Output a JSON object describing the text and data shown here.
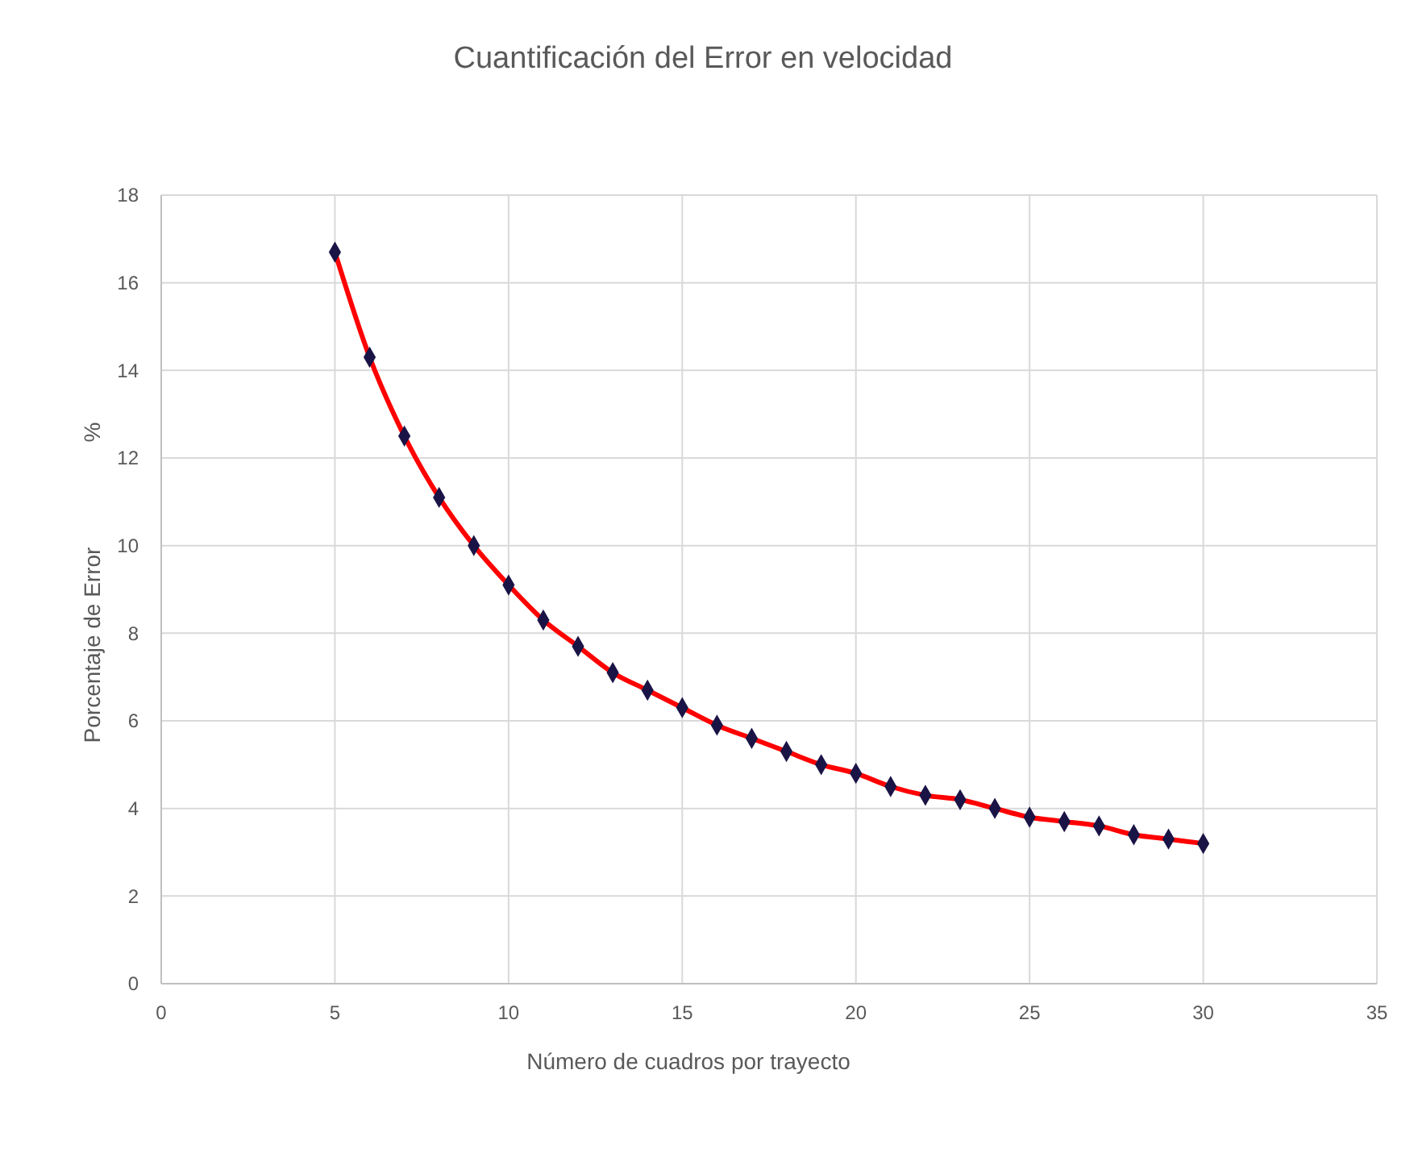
{
  "chart_data": {
    "type": "line",
    "title": "Cuantificación del Error en velocidad",
    "xlabel": "Número de cuadros por trayecto",
    "ylabel": "Porcentaje de Error",
    "annotations": [
      "%"
    ],
    "x": [
      5,
      6,
      7,
      8,
      9,
      10,
      11,
      12,
      13,
      14,
      15,
      16,
      17,
      18,
      19,
      20,
      21,
      22,
      23,
      24,
      25,
      26,
      27,
      28,
      29,
      30
    ],
    "series": [
      {
        "color": "#ff0000",
        "values": [
          16.7,
          14.3,
          12.5,
          11.1,
          10,
          9.1,
          8.3,
          7.7,
          7.1,
          6.7,
          6.3,
          5.9,
          5.6,
          5.3,
          5.0,
          4.8,
          4.5,
          4.3,
          4.2,
          4.0,
          3.8,
          3.7,
          3.6,
          3.4,
          3.3,
          3.2
        ]
      }
    ],
    "marker": "diamond",
    "line_style": "solid",
    "grid": true,
    "xlim": [
      0,
      35
    ],
    "xticks": [
      0,
      5,
      10,
      15,
      20,
      25,
      30,
      35
    ],
    "ylim": [
      0,
      18
    ],
    "yticks": [
      0,
      2,
      4,
      6,
      8,
      10,
      12,
      14,
      16,
      18
    ]
  }
}
